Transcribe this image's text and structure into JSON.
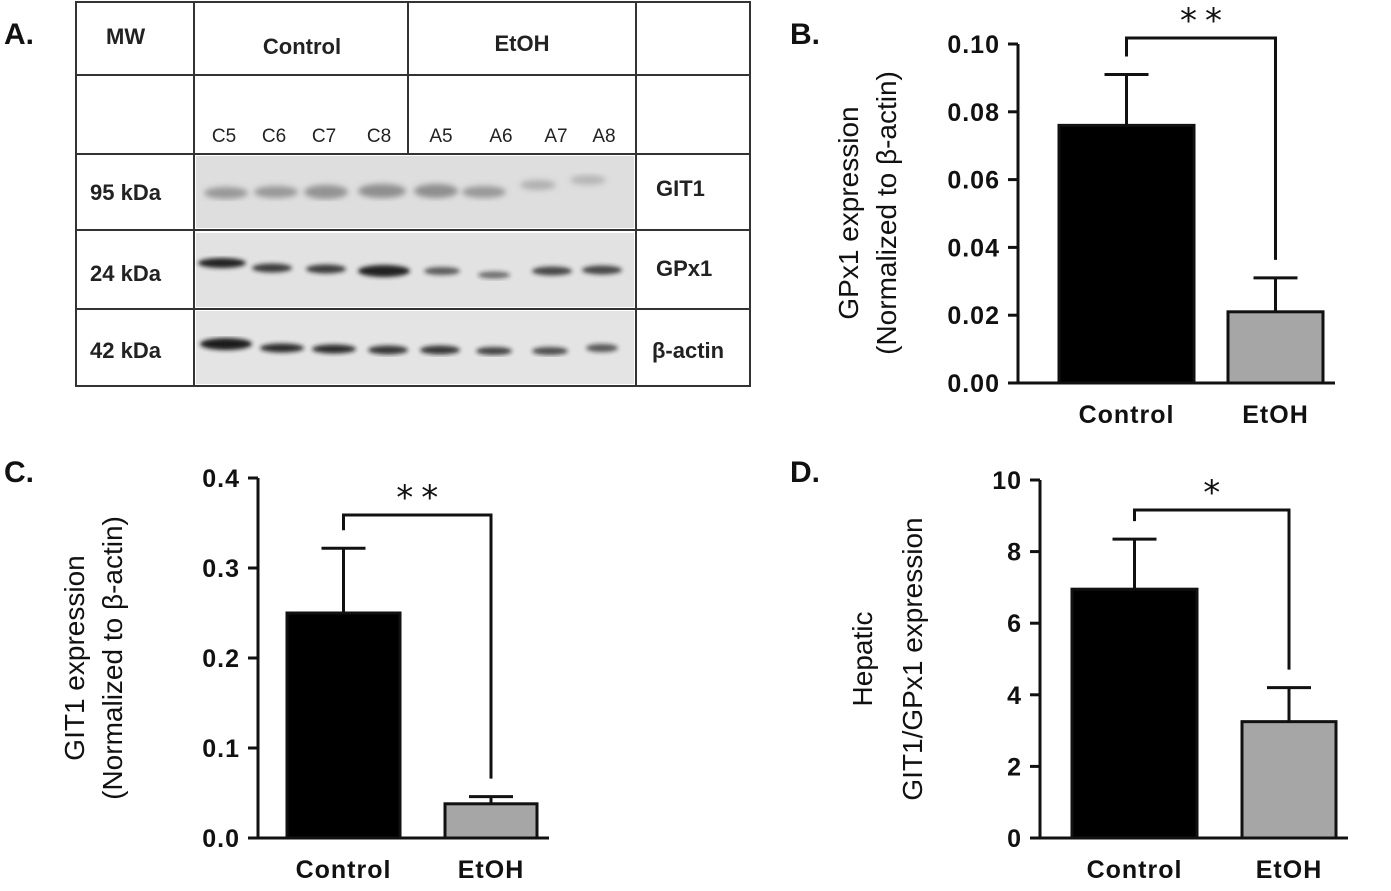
{
  "panel_a": {
    "label": "A.",
    "header": {
      "mw": "MW",
      "group1": "Control",
      "group2": "EtOH"
    },
    "lanes": [
      "C5",
      "C6",
      "C7",
      "C8",
      "A5",
      "A6",
      "A7",
      "A8"
    ],
    "rows": [
      {
        "mw": "95 kDa",
        "protein": "GIT1"
      },
      {
        "mw": "24 kDa",
        "protein": "GPx1"
      },
      {
        "mw": "42 kDa",
        "protein": "β-actin"
      }
    ]
  },
  "chart_data": [
    {
      "panel": "B.",
      "type": "bar",
      "categories": [
        "Control",
        "EtOH"
      ],
      "values": [
        0.076,
        0.021
      ],
      "errors": [
        0.015,
        0.01
      ],
      "colors": [
        "#000000",
        "#a6a6a6"
      ],
      "ylabel": "GPx1 expression",
      "ylabel2": "(Normalized to β-actin)",
      "ylim": [
        0,
        0.1
      ],
      "yticks": [
        "0.00",
        "0.02",
        "0.04",
        "0.06",
        "0.08",
        "0.10"
      ],
      "significance": "**"
    },
    {
      "panel": "C.",
      "type": "bar",
      "categories": [
        "Control",
        "EtOH"
      ],
      "values": [
        0.25,
        0.038
      ],
      "errors": [
        0.072,
        0.008
      ],
      "colors": [
        "#000000",
        "#a6a6a6"
      ],
      "ylabel": "GIT1 expression",
      "ylabel2": "(Normalized to β-actin)",
      "ylim": [
        0,
        0.4
      ],
      "yticks": [
        "0.0",
        "0.1",
        "0.2",
        "0.3",
        "0.4"
      ],
      "significance": "**"
    },
    {
      "panel": "D.",
      "type": "bar",
      "categories": [
        "Control",
        "EtOH"
      ],
      "values": [
        6.95,
        3.25
      ],
      "errors": [
        1.4,
        0.95
      ],
      "colors": [
        "#000000",
        "#a6a6a6"
      ],
      "ylabel": "Hepatic",
      "ylabel2": "GIT1/GPx1 expression",
      "ylim": [
        0,
        10
      ],
      "yticks": [
        "0",
        "2",
        "4",
        "6",
        "8",
        "10"
      ],
      "significance": "*"
    }
  ]
}
